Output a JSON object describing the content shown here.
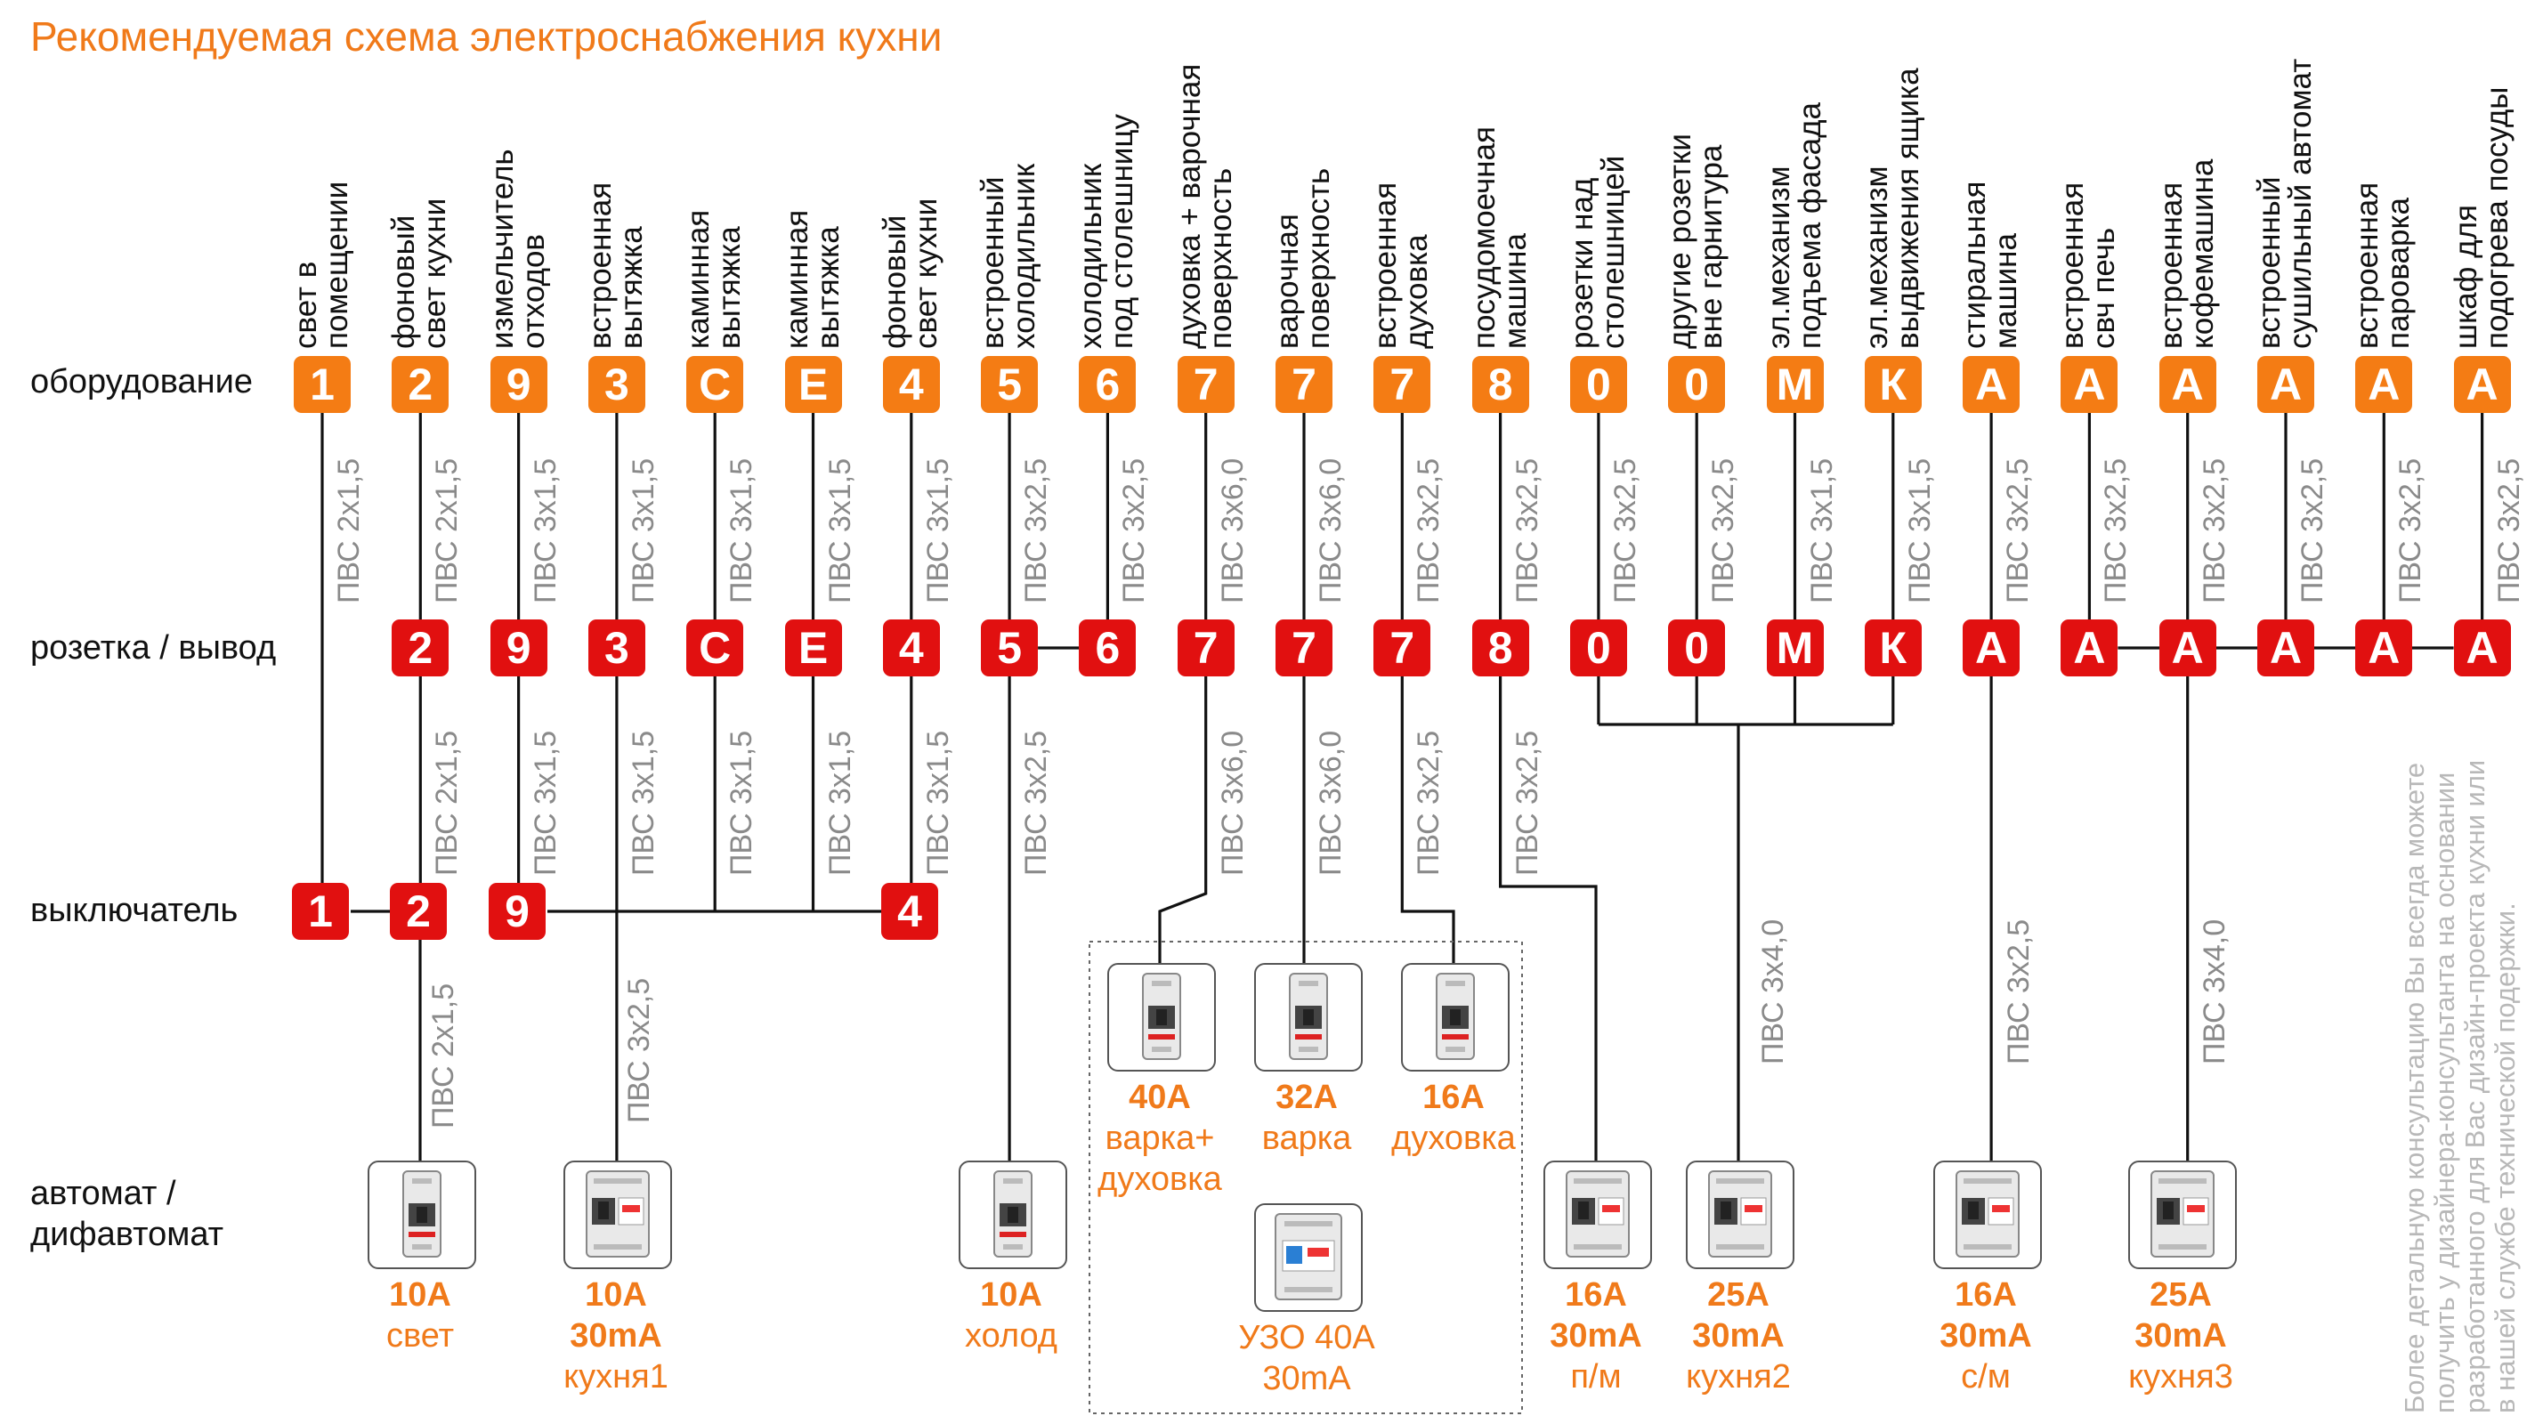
{
  "title": "Рекомендуемая схема электроснабжения кухни",
  "row_labels": {
    "equipment": "оборудование",
    "outlet": "розетка / вывод",
    "switch": "выключатель",
    "breaker_line1": "автомат /",
    "breaker_line2": "дифавтомат"
  },
  "columns": [
    {
      "eq_line1": "свет  в",
      "eq_line2": "помещении",
      "code": "1",
      "cable_top": "ПВС 2х1,5",
      "outlet": "",
      "cable_mid": ""
    },
    {
      "eq_line1": "фоновый",
      "eq_line2": "свет кухни",
      "code": "2",
      "cable_top": "ПВС 2х1,5",
      "outlet": "2",
      "cable_mid": "ПВС 2х1,5"
    },
    {
      "eq_line1": "измельчитель",
      "eq_line2": "отходов",
      "code": "9",
      "cable_top": "ПВС 3х1,5",
      "outlet": "9",
      "cable_mid": "ПВС 3х1,5"
    },
    {
      "eq_line1": "встроенная",
      "eq_line2": "вытяжка",
      "code": "3",
      "cable_top": "ПВС 3х1,5",
      "outlet": "3",
      "cable_mid": "ПВС 3х1,5"
    },
    {
      "eq_line1": "каминная",
      "eq_line2": "вытяжка",
      "code": "С",
      "cable_top": "ПВС 3х1,5",
      "outlet": "С",
      "cable_mid": "ПВС 3х1,5"
    },
    {
      "eq_line1": "каминная",
      "eq_line2": "вытяжка",
      "code": "Е",
      "cable_top": "ПВС 3х1,5",
      "outlet": "Е",
      "cable_mid": "ПВС 3х1,5"
    },
    {
      "eq_line1": "фоновый",
      "eq_line2": "свет кухни",
      "code": "4",
      "cable_top": "ПВС 3х1,5",
      "outlet": "4",
      "cable_mid": "ПВС 3х1,5"
    },
    {
      "eq_line1": "встроенный",
      "eq_line2": "холодильник",
      "code": "5",
      "cable_top": "ПВС 3х2,5",
      "outlet": "5",
      "cable_mid": "ПВС 3х2,5"
    },
    {
      "eq_line1": "холодильник",
      "eq_line2": "под столешницу",
      "code": "6",
      "cable_top": "ПВС 3х2,5",
      "outlet": "6",
      "cable_mid": ""
    },
    {
      "eq_line1": "духовка + варочная",
      "eq_line2": "поверхность",
      "code": "7",
      "cable_top": "ПВС 3х6,0",
      "outlet": "7",
      "cable_mid": "ПВС 3х6,0"
    },
    {
      "eq_line1": "варочная",
      "eq_line2": "поверхность",
      "code": "7",
      "cable_top": "ПВС 3х6,0",
      "outlet": "7",
      "cable_mid": "ПВС 3х6,0"
    },
    {
      "eq_line1": "встроенная",
      "eq_line2": "духовка",
      "code": "7",
      "cable_top": "ПВС 3х2,5",
      "outlet": "7",
      "cable_mid": "ПВС 3х2,5"
    },
    {
      "eq_line1": "посудомоечная",
      "eq_line2": "машина",
      "code": "8",
      "cable_top": "ПВС 3х2,5",
      "outlet": "8",
      "cable_mid": "ПВС 3х2,5"
    },
    {
      "eq_line1": "розетки над",
      "eq_line2": "столешницей",
      "code": "0",
      "cable_top": "ПВС 3х2,5",
      "outlet": "0",
      "cable_mid": ""
    },
    {
      "eq_line1": "другие розетки",
      "eq_line2": "вне гарнитура",
      "code": "0",
      "cable_top": "ПВС 3х2,5",
      "outlet": "0",
      "cable_mid": ""
    },
    {
      "eq_line1": "эл.механизм",
      "eq_line2": "подъема фасада",
      "code": "М",
      "cable_top": "ПВС 3х1,5",
      "outlet": "М",
      "cable_mid": ""
    },
    {
      "eq_line1": "эл.механизм",
      "eq_line2": "выдвижения ящика",
      "code": "К",
      "cable_top": "ПВС 3х1,5",
      "outlet": "К",
      "cable_mid": ""
    },
    {
      "eq_line1": "стиральная",
      "eq_line2": "машина",
      "code": "А",
      "cable_top": "ПВС 3х2,5",
      "outlet": "А",
      "cable_mid": ""
    },
    {
      "eq_line1": "встроенная",
      "eq_line2": "свч печь",
      "code": "А",
      "cable_top": "ПВС 3х2,5",
      "outlet": "А",
      "cable_mid": ""
    },
    {
      "eq_line1": "встроенная",
      "eq_line2": "кофемашина",
      "code": "А",
      "cable_top": "ПВС 3х2,5",
      "outlet": "А",
      "cable_mid": ""
    },
    {
      "eq_line1": "встроенный",
      "eq_line2": "сушильный автомат",
      "code": "А",
      "cable_top": "ПВС 3х2,5",
      "outlet": "А",
      "cable_mid": ""
    },
    {
      "eq_line1": "встроенная",
      "eq_line2": "пароварка",
      "code": "А",
      "cable_top": "ПВС 3х2,5",
      "outlet": "А",
      "cable_mid": ""
    },
    {
      "eq_line1": "шкаф для",
      "eq_line2": "подогрева посуды",
      "code": "А",
      "cable_top": "ПВС 3х2,5",
      "outlet": "А",
      "cable_mid": ""
    }
  ],
  "switches": [
    "1",
    "2",
    "9",
    "4"
  ],
  "cables_low": {
    "switch2": "ПВС 2х1,5",
    "col3": "ПВС 3х2,5",
    "group_sockets": "ПВС 3х4,0",
    "washer": "ПВС 3х2,5",
    "coffee_group": "ПВС 3х4,0"
  },
  "breakers": [
    {
      "rating": "10А",
      "ma": "",
      "name": "свет"
    },
    {
      "rating": "10А",
      "ma": "30mA",
      "name": "кухня1"
    },
    {
      "rating": "10А",
      "ma": "",
      "name": "холод"
    },
    {
      "rating": "16А",
      "ma": "30mA",
      "name": "п/м"
    },
    {
      "rating": "25А",
      "ma": "30mA",
      "name": "кухня2"
    },
    {
      "rating": "16А",
      "ma": "30mA",
      "name": "с/м"
    },
    {
      "rating": "25А",
      "ma": "30mA",
      "name": "кухня3"
    }
  ],
  "oven_group": [
    {
      "rating": "40А",
      "line1": "варка+",
      "line2": "духовка"
    },
    {
      "rating": "32А",
      "line1": "варка",
      "line2": ""
    },
    {
      "rating": "16А",
      "line1": "духовка",
      "line2": ""
    }
  ],
  "uzo": {
    "line1": "УЗО 40А",
    "line2": "30mA"
  },
  "note_lines": [
    "Более детальную консультацию Вы всегда можете",
    "получить у дизайнера-консультанта на основании",
    "разработанного для Вас дизайн-проекта кухни или",
    "в нашей службе технической подержки."
  ],
  "colors": {
    "accent": "#f07a1a",
    "equipment_box": "#f47c14",
    "outlet_box": "#e11010",
    "cable_text": "#8a8a8a"
  }
}
